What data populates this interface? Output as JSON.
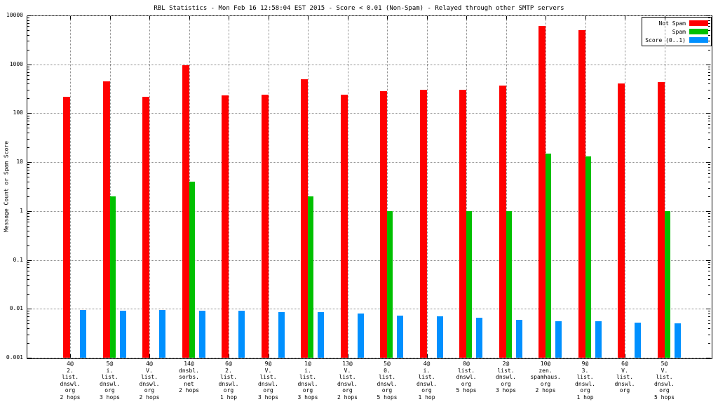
{
  "title": "RBL Statistics - Mon Feb 16 12:58:04 EST 2015 - Score < 0.01 (Non-Spam) - Relayed through other SMTP servers",
  "chart_data": {
    "type": "bar",
    "yscale": "log",
    "grid": true,
    "title": "RBL Statistics - Mon Feb 16 12:58:04 EST 2015 - Score < 0.01 (Non-Spam) - Relayed through other SMTP servers",
    "ylabel": "Message Count or Spam Score",
    "xlabel": "",
    "ylim": [
      0.001,
      10000
    ],
    "yticks": [
      0.001,
      0.01,
      0.1,
      1,
      10,
      100,
      1000,
      10000
    ],
    "legend_position": "top-right",
    "categories": [
      [
        "4@",
        "2.",
        "list.",
        "dnswl.",
        "org",
        "2 hops"
      ],
      [
        "5@",
        "i.",
        "list.",
        "dnswl.",
        "org",
        "3 hops"
      ],
      [
        "4@",
        "V.",
        "list.",
        "dnswl.",
        "org",
        "2 hops"
      ],
      [
        "14@",
        "dnsbl.",
        "sorbs.",
        "net",
        "2 hops"
      ],
      [
        "6@",
        "2.",
        "list.",
        "dnswl.",
        "org",
        "1 hop"
      ],
      [
        "9@",
        "V.",
        "list.",
        "dnswl.",
        "org",
        "3 hops"
      ],
      [
        "1@",
        "i.",
        "list.",
        "dnswl.",
        "org",
        "3 hops"
      ],
      [
        "13@",
        "V.",
        "list.",
        "dnswl.",
        "org",
        "2 hops"
      ],
      [
        "5@",
        "0.",
        "list.",
        "dnswl.",
        "org",
        "5 hops"
      ],
      [
        "4@",
        "i.",
        "list.",
        "dnswl.",
        "org",
        "1 hop"
      ],
      [
        "0@",
        "list.",
        "dnswl.",
        "org",
        "5 hops"
      ],
      [
        "2@",
        "list.",
        "dnswl.",
        "org",
        "3 hops"
      ],
      [
        "10@",
        "zen.",
        "spamhaus.",
        "org",
        "2 hops"
      ],
      [
        "9@",
        "3.",
        "list.",
        "dnswl.",
        "org",
        "1 hop"
      ],
      [
        "6@",
        "V.",
        "list.",
        "dnswl.",
        "org"
      ],
      [
        "5@",
        "V.",
        "list.",
        "dnswl.",
        "org",
        "5 hops"
      ]
    ],
    "series": [
      {
        "name": "Not Spam",
        "color": "#ff0000",
        "values": [
          220,
          450,
          220,
          950,
          230,
          240,
          500,
          240,
          280,
          300,
          300,
          370,
          6000,
          5000,
          400,
          440
        ]
      },
      {
        "name": "Spam",
        "color": "#00c000",
        "values": [
          null,
          2,
          null,
          4,
          null,
          null,
          2,
          null,
          1,
          null,
          1,
          1,
          15,
          13,
          null,
          1
        ]
      },
      {
        "name": "Score (0..1)",
        "color": "#0090ff",
        "values": [
          0.0095,
          0.009,
          0.0095,
          0.009,
          0.009,
          0.0085,
          0.0085,
          0.008,
          0.0072,
          0.007,
          0.0065,
          0.006,
          0.0055,
          0.0055,
          0.0052,
          0.005
        ]
      }
    ]
  }
}
